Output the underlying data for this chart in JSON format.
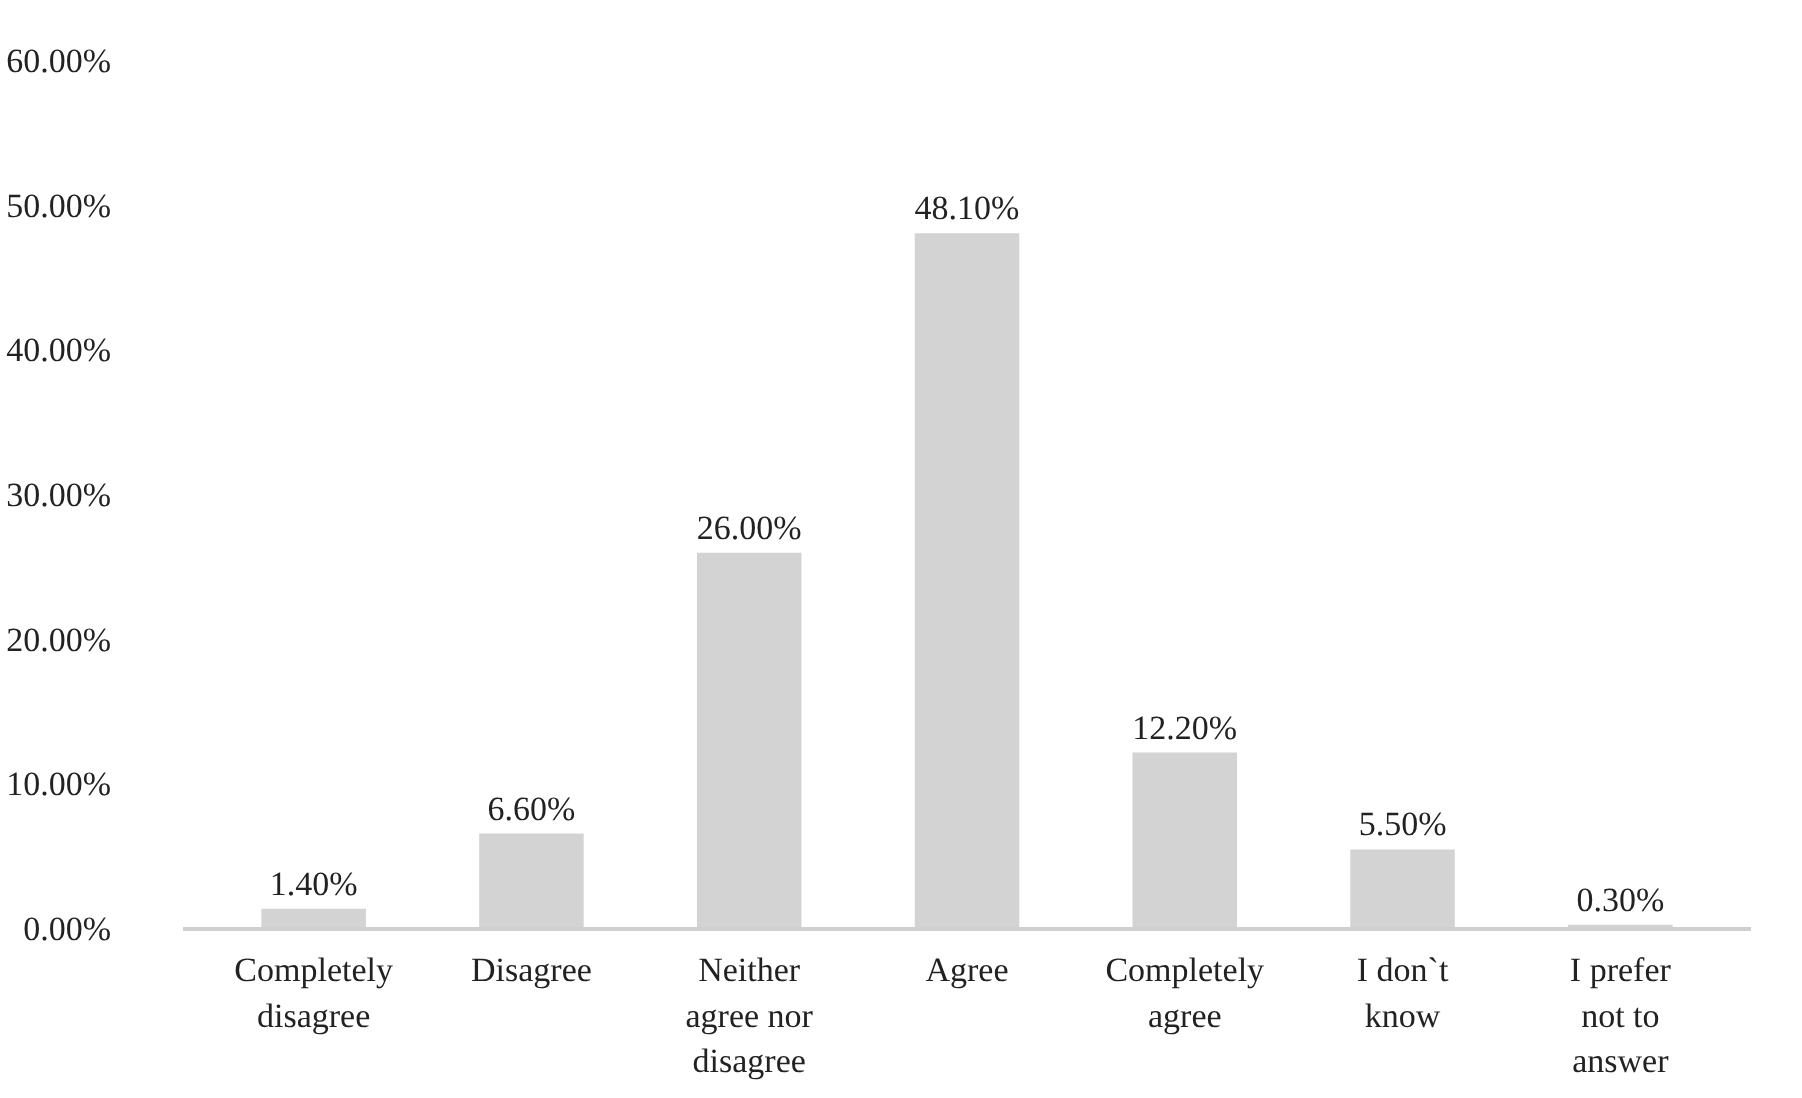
{
  "chart_data": {
    "type": "bar",
    "categories": [
      "Completely disagree",
      "Disagree",
      "Neither agree nor disagree",
      "Agree",
      "Completely agree",
      "I don`t know",
      "I prefer not to answer"
    ],
    "values": [
      1.4,
      6.6,
      26.0,
      48.1,
      12.2,
      5.5,
      0.3
    ],
    "value_labels": [
      "1.40%",
      "6.60%",
      "26.00%",
      "48.10%",
      "12.20%",
      "5.50%",
      "0.30%"
    ],
    "color": "#d3d3d3",
    "ylim": [
      0,
      60
    ],
    "yticks": [
      {
        "value": 0,
        "label": "0.00%"
      },
      {
        "value": 10,
        "label": "10.00%"
      },
      {
        "value": 20,
        "label": "20.00%"
      },
      {
        "value": 30,
        "label": "30.00%"
      },
      {
        "value": 40,
        "label": "40.00%"
      },
      {
        "value": 50,
        "label": "50.00%"
      },
      {
        "value": 60,
        "label": "60.00%"
      }
    ],
    "grid": false
  }
}
